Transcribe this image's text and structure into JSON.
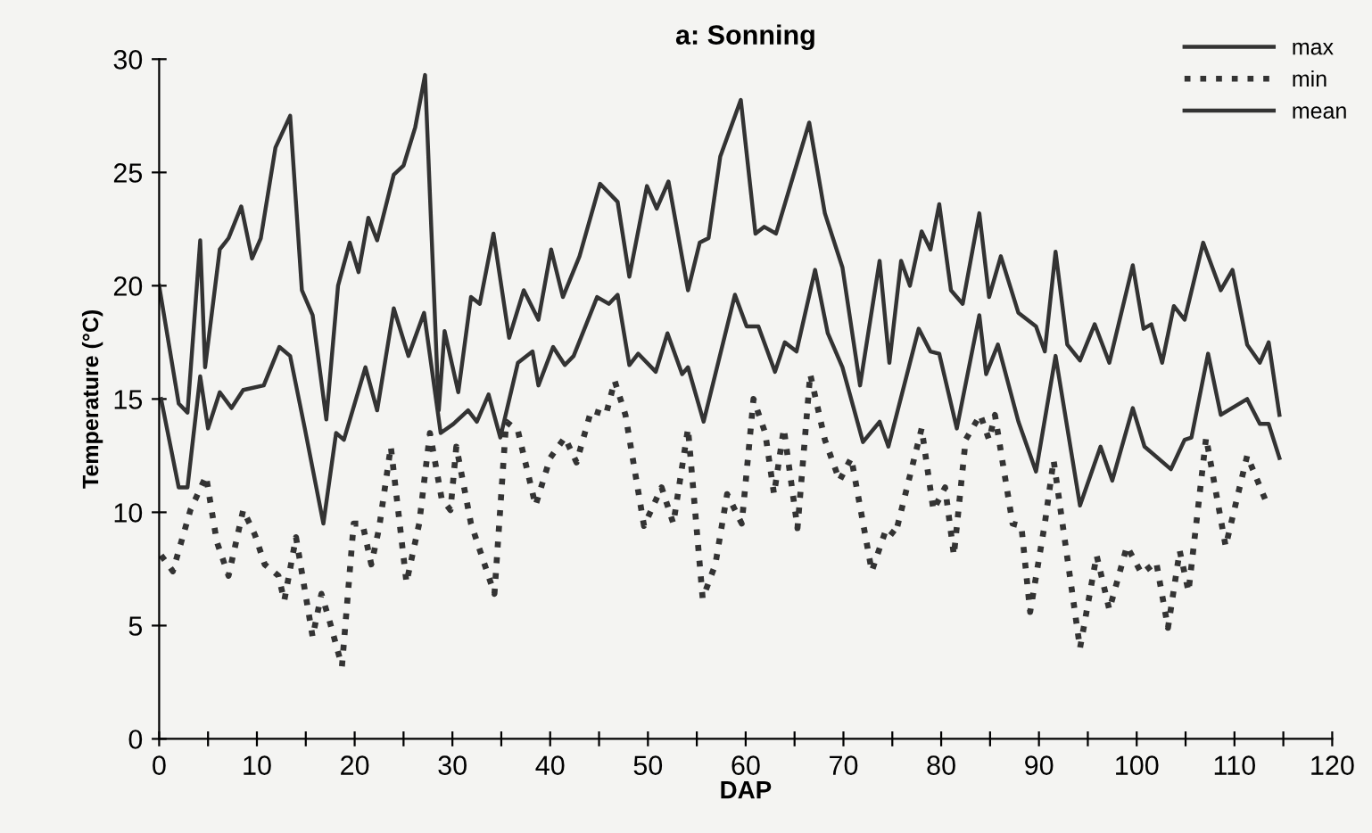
{
  "chart_data": {
    "type": "line",
    "title": "a: Sonning",
    "xlabel": "DAP",
    "ylabel": "Temperature (°C)",
    "xlim": [
      0,
      120
    ],
    "ylim": [
      0,
      30
    ],
    "xticks": [
      0,
      {
        "value": 5,
        "label": null
      },
      10,
      {
        "value": 15,
        "label": null
      },
      20,
      {
        "value": 25,
        "label": null
      },
      30,
      {
        "value": 35,
        "label": null
      },
      40,
      {
        "value": 45,
        "label": null
      },
      50,
      {
        "value": 55,
        "label": null
      },
      60,
      {
        "value": 65,
        "label": null
      },
      70,
      {
        "value": 75,
        "label": null
      },
      80,
      {
        "value": 85,
        "label": null
      },
      90,
      {
        "value": 95,
        "label": null
      },
      100,
      {
        "value": 105,
        "label": null
      },
      110,
      {
        "value": 115,
        "label": null
      },
      120
    ],
    "yticks": [
      0,
      5,
      10,
      15,
      20,
      25,
      30
    ],
    "grid": false,
    "legend": "top right",
    "marker": "none",
    "series": [
      {
        "name": "max",
        "color": "#333333",
        "line_style": "solid",
        "x": [
          0,
          2,
          2.9,
          4.2,
          4.7,
          6.2,
          7.1,
          8.4,
          9.5,
          10.4,
          11.9,
          13.4,
          14.6,
          15.7,
          17.1,
          18.3,
          19.5,
          20.4,
          21.4,
          22.3,
          24,
          25,
          26.2,
          27.2,
          28.6,
          29.2,
          30.6,
          31.9,
          32.8,
          34.2,
          35.8,
          37.3,
          38.8,
          40.1,
          41.3,
          43,
          45.1,
          46.9,
          48.1,
          49.9,
          50.9,
          52.1,
          54.1,
          55.3,
          56.2,
          57.4,
          59.5,
          61,
          61.9,
          63.1,
          66.5,
          68.1,
          69.9,
          71.7,
          73.7,
          74.7,
          75.9,
          76.8,
          78,
          78.9,
          79.8,
          81,
          82.2,
          83.9,
          84.9,
          86.1,
          87.9,
          89.7,
          90.6,
          91.7,
          92.9,
          94.2,
          95.7,
          97.2,
          99.6,
          100.7,
          101.5,
          102.6,
          103.8,
          104.9,
          106.8,
          108.6,
          109.8,
          111.3,
          112.6,
          113.5,
          114.6
        ],
        "values": [
          20,
          14.8,
          14.4,
          22,
          16.4,
          21.6,
          22.1,
          23.5,
          21.2,
          22.1,
          26.1,
          27.5,
          19.8,
          18.7,
          14.1,
          20,
          21.9,
          20.6,
          23,
          22,
          24.9,
          25.3,
          27,
          29.3,
          14.5,
          18,
          15.3,
          19.5,
          19.2,
          22.3,
          17.7,
          19.8,
          18.5,
          21.6,
          19.5,
          21.3,
          24.5,
          23.7,
          20.4,
          24.4,
          23.4,
          24.6,
          19.8,
          21.9,
          22.1,
          25.7,
          28.2,
          22.3,
          22.6,
          22.3,
          27.2,
          23.2,
          20.8,
          15.6,
          21.1,
          16.6,
          21.1,
          20,
          22.4,
          21.6,
          23.6,
          19.8,
          19.2,
          23.2,
          19.5,
          21.3,
          18.8,
          18.2,
          17.1,
          21.5,
          17.4,
          16.7,
          18.3,
          16.6,
          20.9,
          18.1,
          18.3,
          16.6,
          19.1,
          18.5,
          21.9,
          19.8,
          20.7,
          17.4,
          16.6,
          17.5,
          14.3
        ]
      },
      {
        "name": "min",
        "color": "#333333",
        "line_style": "dotted",
        "x": [
          0.2,
          1.4,
          3.2,
          4.8,
          5.9,
          7.1,
          8.6,
          9.8,
          10.8,
          12.2,
          12.8,
          14,
          15.7,
          16.6,
          17.5,
          18.7,
          19.9,
          20.8,
          21.7,
          22.5,
          23.7,
          25.3,
          26.6,
          27.7,
          28.9,
          29.8,
          30.4,
          31.9,
          34.3,
          35.5,
          36.7,
          38.5,
          40,
          41.5,
          42.7,
          44.2,
          45.7,
          46.6,
          47.7,
          49.6,
          51.4,
          52.6,
          54.1,
          55.6,
          56.9,
          58.1,
          59.6,
          60.8,
          62,
          62.9,
          63.9,
          65.3,
          66.6,
          68.1,
          69.6,
          70.8,
          72.9,
          74.4,
          75.3,
          78,
          79.2,
          80.4,
          81.3,
          82.5,
          84,
          84.9,
          85.5,
          87.3,
          88.2,
          89.1,
          90.6,
          91.5,
          94.2,
          95.9,
          97.2,
          99,
          100.5,
          102,
          103.2,
          104.4,
          105.3,
          107.1,
          109.1,
          111.3,
          113.4
        ],
        "values": [
          8.1,
          7.4,
          10.1,
          11.6,
          8.7,
          7.2,
          10.1,
          9,
          7.7,
          7.2,
          6.1,
          8.9,
          4.5,
          6.4,
          5.1,
          3.2,
          9.5,
          9.5,
          7.7,
          9.3,
          12.9,
          6.9,
          9.5,
          13.5,
          10.6,
          10.1,
          12.9,
          9.5,
          6.4,
          14,
          13.6,
          10.3,
          12.4,
          13.3,
          12.2,
          14.5,
          14.3,
          15.8,
          14.3,
          9.4,
          11.1,
          9.5,
          13.7,
          6.2,
          7.7,
          10.8,
          9.5,
          15,
          13.5,
          10.8,
          13.7,
          9.3,
          16.1,
          13.2,
          11.4,
          12.4,
          7.4,
          9.3,
          9,
          13.7,
          10.1,
          11.1,
          8.1,
          13.2,
          14.3,
          13.2,
          14.3,
          9.5,
          9.4,
          5.6,
          9.5,
          12.3,
          4,
          8.1,
          5.7,
          8.5,
          7.3,
          7.8,
          4.9,
          8.3,
          6.5,
          13.3,
          8.5,
          12.5,
          10.3
        ]
      },
      {
        "name": "mean",
        "color": "#333333",
        "line_style": "solid",
        "x": [
          0.2,
          2,
          2.9,
          4.2,
          5,
          6.2,
          7.4,
          8.6,
          10.7,
          12.3,
          13.4,
          14.9,
          16.8,
          18.1,
          18.9,
          21.1,
          22.3,
          24,
          25.5,
          27.1,
          28.8,
          30.1,
          31.6,
          32.5,
          33.7,
          34.9,
          36.7,
          38.2,
          38.8,
          40.3,
          41.5,
          42.4,
          44.8,
          46,
          46.9,
          48.1,
          49,
          50.8,
          52,
          53.5,
          54.1,
          55.7,
          58.9,
          60.1,
          61.3,
          63,
          64,
          65.2,
          67.1,
          68.4,
          69.9,
          72,
          73.7,
          74.6,
          77.7,
          78.9,
          79.8,
          81.6,
          83.9,
          84.6,
          85.8,
          87.9,
          89.7,
          91.7,
          94.2,
          96.3,
          97.5,
          99.6,
          100.8,
          103.5,
          104.9,
          105.6,
          107.3,
          108.6,
          111.3,
          112.6,
          113.5,
          114.6
        ],
        "values": [
          15,
          11.1,
          11.1,
          16,
          13.7,
          15.3,
          14.6,
          15.4,
          15.6,
          17.3,
          16.9,
          13.7,
          9.5,
          13.5,
          13.2,
          16.4,
          14.5,
          19,
          16.9,
          18.8,
          13.5,
          13.9,
          14.5,
          14,
          15.2,
          13.3,
          16.6,
          17.1,
          15.6,
          17.3,
          16.5,
          16.9,
          19.5,
          19.2,
          19.6,
          16.5,
          17,
          16.2,
          17.9,
          16.1,
          16.4,
          14,
          19.6,
          18.2,
          18.2,
          16.2,
          17.5,
          17.1,
          20.7,
          17.9,
          16.4,
          13.1,
          14,
          12.9,
          18.1,
          17.1,
          17,
          13.7,
          18.7,
          16.1,
          17.4,
          14,
          11.8,
          16.9,
          10.3,
          12.9,
          11.4,
          14.6,
          12.9,
          11.9,
          13.2,
          13.3,
          17,
          14.3,
          15,
          13.9,
          13.9,
          12.4
        ]
      }
    ]
  }
}
